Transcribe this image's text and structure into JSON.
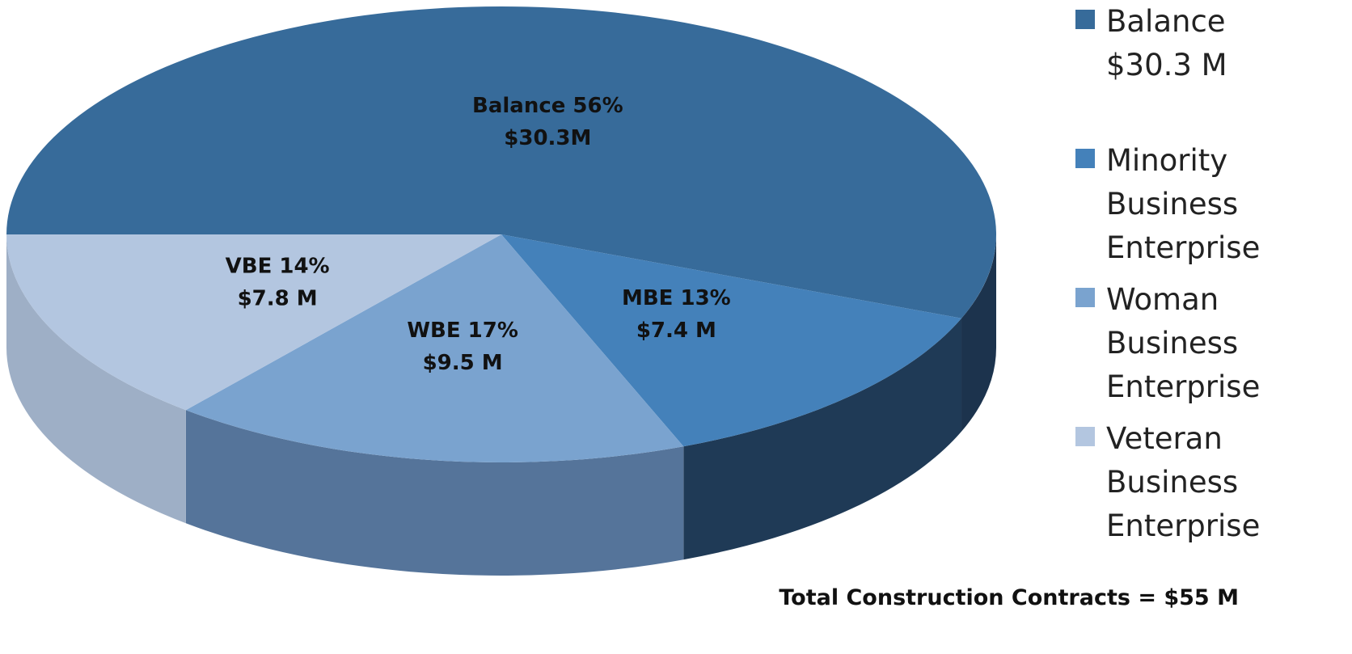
{
  "chart_data": {
    "type": "pie",
    "labels": [
      "Balance $30.3 M",
      "Minority Business Enterprise",
      "Woman Business Enterprise",
      "Veteran Business Enterprise"
    ],
    "values": [
      56,
      13,
      17,
      14
    ],
    "value_labels": [
      "Balance 56%",
      "MBE  13%",
      "WBE 17%",
      "VBE  14%"
    ],
    "amount_labels": [
      "$30.3M",
      "$7.4 M",
      "$9.5 M",
      "$7.8 M"
    ],
    "colors": [
      "#376b9a",
      "#4481ba",
      "#7aa3cf",
      "#b3c6e0"
    ],
    "side_colors": [
      "#1c334d",
      "#1f3a56",
      "#55749a",
      "#9eafc6"
    ],
    "annotation": "Total Construction Contracts  = $55 M",
    "legend": "right"
  }
}
